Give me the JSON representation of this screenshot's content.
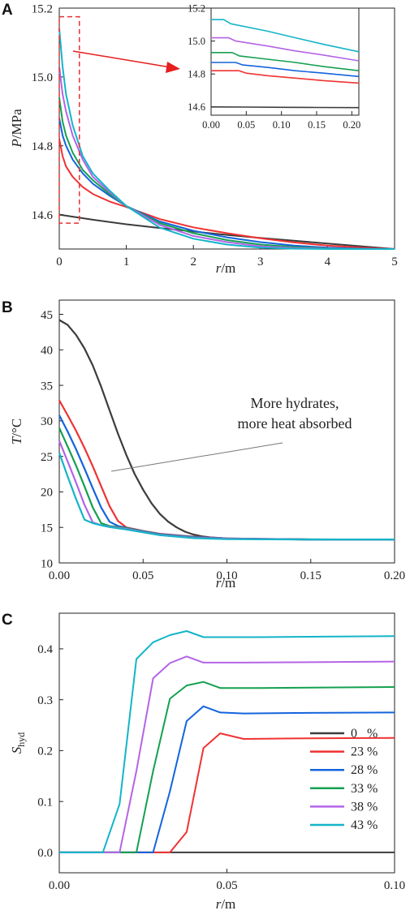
{
  "colors": {
    "s0": "#3c3c3c",
    "s23": "#f03232",
    "s28": "#1464dc",
    "s33": "#14a050",
    "s38": "#b464e6",
    "s43": "#14b4c8",
    "zoom_box": "#e63232",
    "arrow": "#e61e1e",
    "annotation_line": "#777777"
  },
  "chart_data": [
    {
      "panel": "A",
      "type": "line",
      "ylabel_main": "P",
      "ylabel_unit": "/MPa",
      "xlabel_main": "r",
      "xlabel_unit": "/m",
      "xlim": [
        0,
        5
      ],
      "ylim": [
        14.5,
        15.2
      ],
      "xticks": [
        "0",
        "1",
        "2",
        "3",
        "4",
        "5"
      ],
      "yticks": [
        "14.6",
        "14.8",
        "15.0",
        "15.2"
      ],
      "series": [
        {
          "key": "s0",
          "x": [
            0,
            0.5,
            1,
            1.5,
            2,
            2.5,
            3,
            3.5,
            4,
            4.5,
            5
          ],
          "y": [
            14.6,
            14.585,
            14.572,
            14.561,
            14.551,
            14.541,
            14.532,
            14.524,
            14.516,
            14.508,
            14.5
          ]
        },
        {
          "key": "s23",
          "x": [
            0,
            0.05,
            0.1,
            0.2,
            0.35,
            0.5,
            0.75,
            1,
            1.5,
            2,
            2.5,
            3,
            3.5,
            4,
            4.5,
            5
          ],
          "y": [
            14.82,
            14.77,
            14.74,
            14.71,
            14.68,
            14.66,
            14.638,
            14.622,
            14.587,
            14.563,
            14.546,
            14.531,
            14.519,
            14.51,
            14.504,
            14.5
          ]
        },
        {
          "key": "s28",
          "x": [
            0,
            0.05,
            0.1,
            0.2,
            0.35,
            0.5,
            0.75,
            1,
            1.5,
            2,
            2.5,
            3,
            3.5,
            4,
            4.5,
            5
          ],
          "y": [
            14.88,
            14.83,
            14.8,
            14.76,
            14.72,
            14.69,
            14.655,
            14.625,
            14.58,
            14.553,
            14.534,
            14.52,
            14.51,
            14.504,
            14.501,
            14.5
          ]
        },
        {
          "key": "s33",
          "x": [
            0,
            0.05,
            0.1,
            0.2,
            0.35,
            0.5,
            0.75,
            1,
            1.5,
            2,
            2.5,
            3,
            3.5,
            4,
            4.5,
            5
          ],
          "y": [
            14.94,
            14.87,
            14.83,
            14.78,
            14.73,
            14.7,
            14.66,
            14.625,
            14.575,
            14.546,
            14.526,
            14.513,
            14.506,
            14.502,
            14.5,
            14.5
          ]
        },
        {
          "key": "s38",
          "x": [
            0,
            0.05,
            0.1,
            0.2,
            0.35,
            0.5,
            0.75,
            1,
            1.5,
            2,
            2.5,
            3,
            3.5,
            4,
            4.5,
            5
          ],
          "y": [
            15.03,
            14.95,
            14.9,
            14.83,
            14.76,
            14.71,
            14.665,
            14.625,
            14.57,
            14.538,
            14.52,
            14.508,
            14.503,
            14.501,
            14.5,
            14.5
          ]
        },
        {
          "key": "s43",
          "x": [
            0,
            0.05,
            0.1,
            0.2,
            0.35,
            0.5,
            0.75,
            1,
            1.5,
            2,
            2.5,
            3,
            3.5,
            4,
            4.5,
            5
          ],
          "y": [
            15.14,
            15.03,
            14.95,
            14.86,
            14.77,
            14.72,
            14.67,
            14.625,
            14.562,
            14.53,
            14.513,
            14.504,
            14.501,
            14.5,
            14.5,
            14.5
          ]
        }
      ],
      "zoom_box": {
        "x": [
          0,
          0.3
        ],
        "y": [
          14.575,
          15.175
        ]
      },
      "inset": {
        "xlim": [
          0,
          0.21
        ],
        "ylim": [
          14.55,
          15.2
        ],
        "xticks": [
          "0.00",
          "0.05",
          "0.10",
          "0.15",
          "0.20"
        ],
        "yticks": [
          "14.6",
          "14.8",
          "15.0",
          "15.2"
        ],
        "series": [
          {
            "key": "s0",
            "x": [
              0,
              0.05,
              0.1,
              0.15,
              0.21
            ],
            "y": [
              14.6,
              14.599,
              14.598,
              14.597,
              14.596
            ]
          },
          {
            "key": "s23",
            "x": [
              0,
              0.04,
              0.05,
              0.08,
              0.12,
              0.16,
              0.21
            ],
            "y": [
              14.82,
              14.82,
              14.805,
              14.79,
              14.775,
              14.76,
              14.745
            ]
          },
          {
            "key": "s28",
            "x": [
              0,
              0.035,
              0.045,
              0.08,
              0.12,
              0.16,
              0.21
            ],
            "y": [
              14.87,
              14.87,
              14.855,
              14.84,
              14.82,
              14.805,
              14.785
            ]
          },
          {
            "key": "s33",
            "x": [
              0,
              0.03,
              0.04,
              0.08,
              0.12,
              0.16,
              0.21
            ],
            "y": [
              14.93,
              14.93,
              14.91,
              14.89,
              14.87,
              14.845,
              14.82
            ]
          },
          {
            "key": "s38",
            "x": [
              0,
              0.025,
              0.035,
              0.08,
              0.12,
              0.16,
              0.21
            ],
            "y": [
              15.02,
              15.02,
              15.0,
              14.97,
              14.94,
              14.915,
              14.88
            ]
          },
          {
            "key": "s43",
            "x": [
              0,
              0.018,
              0.028,
              0.08,
              0.12,
              0.16,
              0.21
            ],
            "y": [
              15.13,
              15.13,
              15.105,
              15.06,
              15.02,
              14.98,
              14.935
            ]
          }
        ]
      }
    },
    {
      "panel": "B",
      "type": "line",
      "ylabel_main": "T",
      "ylabel_unit": "/°C",
      "xlabel_main": "r",
      "xlabel_unit": "/m",
      "xlim": [
        0,
        0.2
      ],
      "ylim": [
        10,
        47
      ],
      "xticks": [
        "0.00",
        "0.05",
        "0.10",
        "0.15",
        "0.20"
      ],
      "yticks": [
        "10",
        "15",
        "20",
        "25",
        "30",
        "35",
        "40",
        "45"
      ],
      "annotation": {
        "line1": "More hydrates,",
        "line2": "more heat absorbed"
      },
      "series": [
        {
          "key": "s0",
          "x": [
            0,
            0.005,
            0.01,
            0.015,
            0.02,
            0.025,
            0.03,
            0.035,
            0.04,
            0.045,
            0.05,
            0.055,
            0.06,
            0.065,
            0.07,
            0.075,
            0.08,
            0.085,
            0.09,
            0.1,
            0.11,
            0.12,
            0.13,
            0.14,
            0.15,
            0.17,
            0.2
          ],
          "y": [
            44.2,
            43.5,
            42.1,
            40.2,
            37.8,
            34.8,
            31.5,
            28.2,
            25.2,
            22.5,
            20.3,
            18.4,
            16.9,
            15.8,
            15.0,
            14.4,
            14.0,
            13.75,
            13.6,
            13.45,
            13.38,
            13.35,
            13.33,
            13.32,
            13.31,
            13.3,
            13.3
          ]
        },
        {
          "key": "s23",
          "x": [
            0,
            0.005,
            0.01,
            0.015,
            0.02,
            0.025,
            0.03,
            0.035,
            0.04,
            0.05,
            0.06,
            0.08,
            0.1,
            0.15,
            0.2
          ],
          "y": [
            32.9,
            30.8,
            28.6,
            26.2,
            23.6,
            20.8,
            18.0,
            15.9,
            15.0,
            14.5,
            14.1,
            13.7,
            13.45,
            13.3,
            13.3
          ]
        },
        {
          "key": "s28",
          "x": [
            0,
            0.005,
            0.01,
            0.015,
            0.02,
            0.025,
            0.03,
            0.035,
            0.04,
            0.05,
            0.06,
            0.08,
            0.1,
            0.15,
            0.2
          ],
          "y": [
            30.8,
            28.5,
            26.0,
            23.3,
            20.5,
            17.8,
            15.8,
            15.2,
            14.95,
            14.45,
            14.05,
            13.65,
            13.45,
            13.3,
            13.3
          ]
        },
        {
          "key": "s33",
          "x": [
            0,
            0.005,
            0.01,
            0.015,
            0.02,
            0.025,
            0.03,
            0.04,
            0.05,
            0.06,
            0.08,
            0.1,
            0.15,
            0.2
          ],
          "y": [
            29.0,
            26.4,
            23.7,
            20.8,
            17.8,
            15.6,
            15.2,
            14.9,
            14.4,
            14.0,
            13.6,
            13.4,
            13.3,
            13.3
          ]
        },
        {
          "key": "s38",
          "x": [
            0,
            0.005,
            0.01,
            0.015,
            0.02,
            0.025,
            0.03,
            0.04,
            0.05,
            0.06,
            0.08,
            0.1,
            0.15,
            0.2
          ],
          "y": [
            27.2,
            24.3,
            21.3,
            18.2,
            15.7,
            15.3,
            15.1,
            14.8,
            14.35,
            13.95,
            13.55,
            13.4,
            13.3,
            13.3
          ]
        },
        {
          "key": "s43",
          "x": [
            0,
            0.005,
            0.01,
            0.015,
            0.02,
            0.025,
            0.03,
            0.04,
            0.05,
            0.06,
            0.08,
            0.1,
            0.15,
            0.2
          ],
          "y": [
            25.5,
            22.2,
            19.0,
            16.1,
            15.6,
            15.3,
            15.05,
            14.7,
            14.3,
            13.9,
            13.5,
            13.35,
            13.3,
            13.3
          ]
        }
      ]
    },
    {
      "panel": "C",
      "type": "line",
      "ylabel_main": "S",
      "ylabel_sub": "hyd",
      "xlabel_main": "r",
      "xlabel_unit": "/m",
      "xlim": [
        0,
        0.1
      ],
      "ylim": [
        -0.04,
        0.47
      ],
      "xticks": [
        "0.00",
        "0.05",
        "0.10"
      ],
      "yticks": [
        "0.0",
        "0.1",
        "0.2",
        "0.3",
        "0.4"
      ],
      "legend": {
        "position": "center-right",
        "entries": [
          {
            "key": "s0",
            "label": "0   %"
          },
          {
            "key": "s23",
            "label": "23 %"
          },
          {
            "key": "s28",
            "label": "28 %"
          },
          {
            "key": "s33",
            "label": "33 %"
          },
          {
            "key": "s38",
            "label": "38 %"
          },
          {
            "key": "s43",
            "label": "43 %"
          }
        ]
      },
      "series": [
        {
          "key": "s0",
          "x": [
            0,
            0.1
          ],
          "y": [
            0,
            0
          ]
        },
        {
          "key": "s23",
          "x": [
            0,
            0.033,
            0.038,
            0.043,
            0.048,
            0.055,
            0.07,
            0.1
          ],
          "y": [
            0,
            0,
            0.04,
            0.205,
            0.234,
            0.223,
            0.224,
            0.225
          ]
        },
        {
          "key": "s28",
          "x": [
            0,
            0.028,
            0.033,
            0.038,
            0.043,
            0.048,
            0.055,
            0.07,
            0.1
          ],
          "y": [
            0,
            0,
            0.12,
            0.258,
            0.287,
            0.275,
            0.273,
            0.274,
            0.275
          ]
        },
        {
          "key": "s33",
          "x": [
            0,
            0.023,
            0.028,
            0.033,
            0.038,
            0.043,
            0.048,
            0.06,
            0.1
          ],
          "y": [
            0,
            0,
            0.16,
            0.302,
            0.328,
            0.335,
            0.323,
            0.323,
            0.325
          ]
        },
        {
          "key": "s38",
          "x": [
            0,
            0.018,
            0.023,
            0.028,
            0.033,
            0.038,
            0.043,
            0.055,
            0.1
          ],
          "y": [
            0,
            0,
            0.16,
            0.342,
            0.372,
            0.385,
            0.373,
            0.373,
            0.375
          ]
        },
        {
          "key": "s43",
          "x": [
            0,
            0.013,
            0.018,
            0.023,
            0.028,
            0.033,
            0.038,
            0.043,
            0.06,
            0.1
          ],
          "y": [
            0,
            0,
            0.095,
            0.38,
            0.413,
            0.427,
            0.435,
            0.423,
            0.423,
            0.425
          ]
        }
      ]
    }
  ]
}
